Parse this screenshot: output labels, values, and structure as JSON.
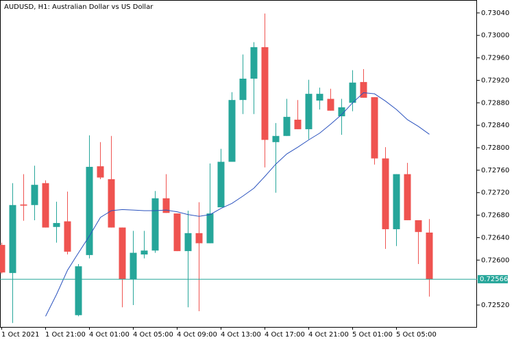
{
  "chart_data": {
    "type": "candlestick",
    "title": "AUDUSD, H1:  Australian Dollar vs US Dollar",
    "categories": [
      "1 Oct 2021",
      null,
      null,
      null,
      "1 Oct 21:00",
      null,
      null,
      null,
      "4 Oct 01:00",
      null,
      null,
      null,
      "4 Oct 05:00",
      null,
      null,
      null,
      "4 Oct 09:00",
      null,
      null,
      null,
      "4 Oct 13:00",
      null,
      null,
      null,
      "4 Oct 17:00",
      null,
      null,
      null,
      "4 Oct 21:00",
      null,
      null,
      null,
      "5 Oct 01:00",
      null,
      null,
      null,
      "5 Oct 05:00",
      null,
      null,
      null
    ],
    "open": [
      0.72627,
      0.72577,
      0.72699,
      0.72698,
      0.72737,
      0.72659,
      0.72669,
      0.72502,
      0.72609,
      0.72767,
      0.72744,
      0.72658,
      0.72566,
      0.7261,
      0.72617,
      0.7271,
      0.72683,
      0.72616,
      0.72648,
      0.7263,
      0.72694,
      0.72775,
      0.72885,
      0.72923,
      0.72979,
      0.7281,
      0.72821,
      0.7285,
      0.72833,
      0.72884,
      0.72887,
      0.72856,
      0.7288,
      0.72917,
      0.7289,
      0.72781,
      0.72655,
      0.72753,
      0.72671,
      0.72649
    ],
    "high": [
      0.72631,
      0.72737,
      0.72753,
      0.72768,
      0.72742,
      0.72704,
      0.72722,
      0.72593,
      0.72822,
      0.7281,
      0.72821,
      0.72658,
      0.72652,
      0.72652,
      0.72723,
      0.72753,
      0.72683,
      0.72688,
      0.72703,
      0.72772,
      0.72798,
      0.72899,
      0.72966,
      0.72988,
      0.73039,
      0.72844,
      0.72887,
      0.72885,
      0.72921,
      0.72907,
      0.72905,
      0.72887,
      0.72938,
      0.7294,
      0.7289,
      0.72801,
      0.72753,
      0.72773,
      0.72671,
      0.72673
    ],
    "low": [
      0.72576,
      0.72488,
      0.7267,
      0.72671,
      0.72658,
      0.72631,
      0.7261,
      0.725,
      0.72603,
      0.72744,
      0.72658,
      0.72516,
      0.7252,
      0.72603,
      0.72613,
      0.72684,
      0.72616,
      0.72516,
      0.72509,
      0.7263,
      0.72694,
      0.72775,
      0.7286,
      0.7286,
      0.72765,
      0.7272,
      0.72821,
      0.72833,
      0.72815,
      0.72868,
      0.72866,
      0.72823,
      0.72865,
      0.72889,
      0.7277,
      0.7262,
      0.72625,
      0.72671,
      0.72593,
      0.72535
    ],
    "close": [
      0.72578,
      0.72698,
      0.72697,
      0.72734,
      0.72658,
      0.72666,
      0.72615,
      0.72589,
      0.72766,
      0.72747,
      0.72658,
      0.72566,
      0.72613,
      0.72617,
      0.7271,
      0.72684,
      0.72616,
      0.72648,
      0.7263,
      0.72683,
      0.72775,
      0.72885,
      0.72923,
      0.72979,
      0.72814,
      0.72821,
      0.72855,
      0.72833,
      0.72896,
      0.72896,
      0.72866,
      0.72872,
      0.72916,
      0.72889,
      0.72781,
      0.72655,
      0.72753,
      0.72671,
      0.7265,
      0.72566
    ],
    "up_color": "#26a69a",
    "down_color": "#ef5350",
    "ma": {
      "color": "#2a52be",
      "values": [
        null,
        null,
        null,
        null,
        0.725,
        0.72539,
        0.72582,
        0.72613,
        0.72643,
        0.72676,
        0.72688,
        0.7269,
        0.72689,
        0.72688,
        0.72688,
        0.72689,
        0.72686,
        0.72681,
        0.72678,
        0.72681,
        0.72692,
        0.72701,
        0.72714,
        0.72728,
        0.72749,
        0.72771,
        0.72789,
        0.72801,
        0.72814,
        0.72826,
        0.72842,
        0.72859,
        0.7288,
        0.72898,
        0.72896,
        0.72883,
        0.72868,
        0.7285,
        0.72838,
        0.72824
      ]
    },
    "current_price": {
      "value": 0.72566,
      "label": "0.72566",
      "color": "#26a69a"
    },
    "ylim": [
      0.72481,
      0.73063
    ],
    "yticks": [
      {
        "value": 0.7252,
        "label": "0.72520"
      },
      {
        "value": 0.726,
        "label": "0.72600"
      },
      {
        "value": 0.7264,
        "label": "0.72640"
      },
      {
        "value": 0.7268,
        "label": "0.72680"
      },
      {
        "value": 0.7272,
        "label": "0.72720"
      },
      {
        "value": 0.7276,
        "label": "0.72760"
      },
      {
        "value": 0.728,
        "label": "0.72800"
      },
      {
        "value": 0.7284,
        "label": "0.72840"
      },
      {
        "value": 0.7288,
        "label": "0.72880"
      },
      {
        "value": 0.7292,
        "label": "0.72920"
      },
      {
        "value": 0.7296,
        "label": "0.72960"
      },
      {
        "value": 0.73,
        "label": "0.73000"
      },
      {
        "value": 0.7304,
        "label": "0.73040"
      }
    ]
  }
}
